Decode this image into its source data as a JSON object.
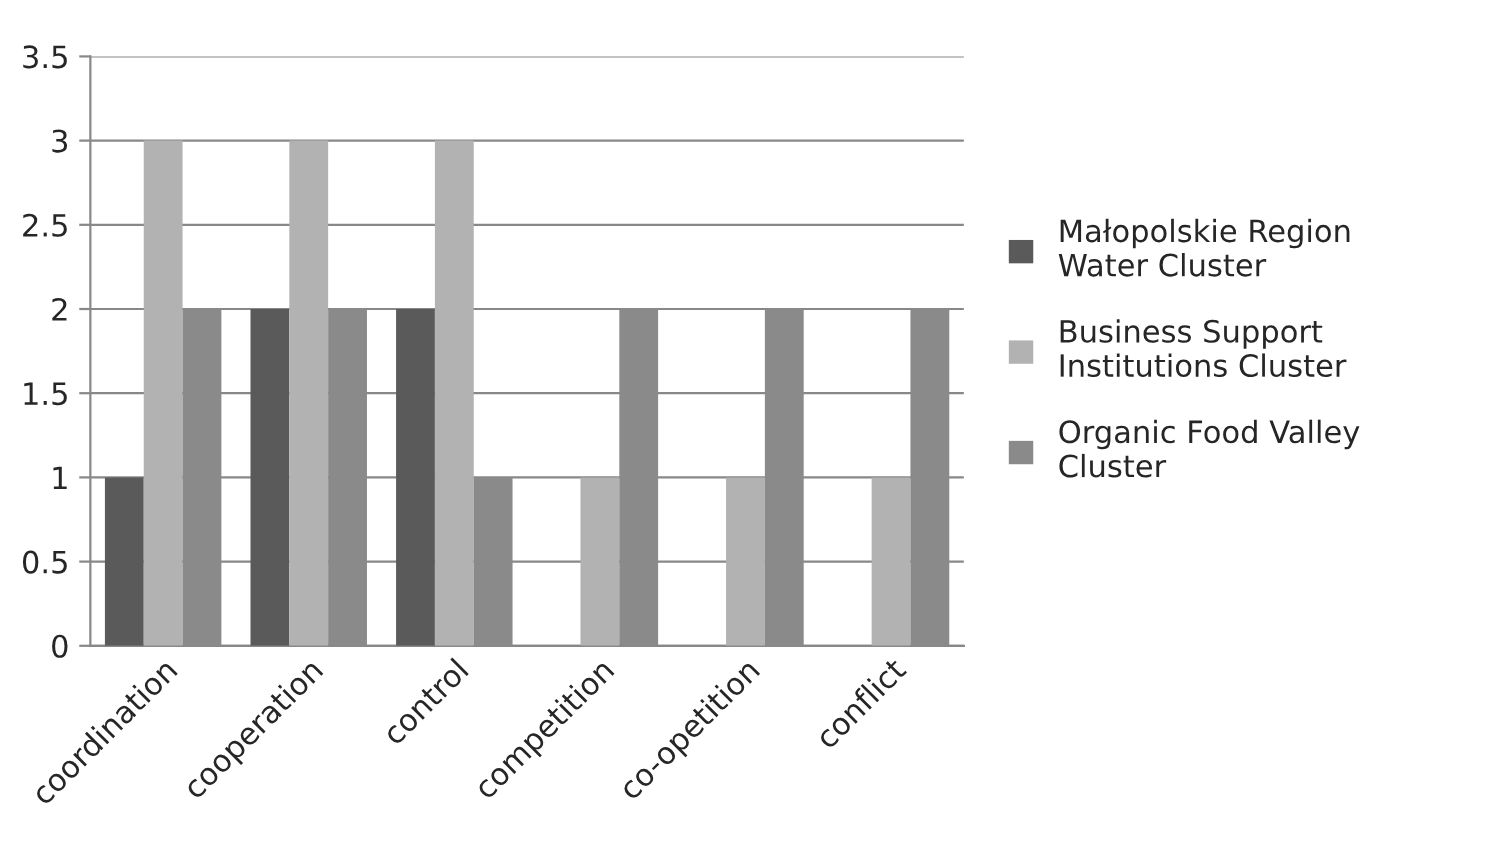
{
  "chart_data": {
    "type": "bar",
    "categories": [
      "coordination",
      "cooperation",
      "control",
      "competition",
      "co-opetition",
      "conflict"
    ],
    "series": [
      {
        "name": "Małopolskie Region Water Cluster",
        "color": "#5a5a5a",
        "values": [
          1,
          2,
          2,
          0,
          0,
          0
        ]
      },
      {
        "name": "Business Support Institutions Cluster",
        "color": "#b2b2b2",
        "values": [
          3,
          3,
          3,
          1,
          1,
          1
        ]
      },
      {
        "name": "Organic Food Valley Cluster",
        "color": "#8a8a8a",
        "values": [
          2,
          2,
          1,
          2,
          2,
          2
        ]
      }
    ],
    "ylim": [
      0,
      3.5
    ],
    "yticks": [
      0,
      0.5,
      1,
      1.5,
      2,
      2.5,
      3,
      3.5
    ],
    "grid": "y",
    "legend": "right"
  }
}
